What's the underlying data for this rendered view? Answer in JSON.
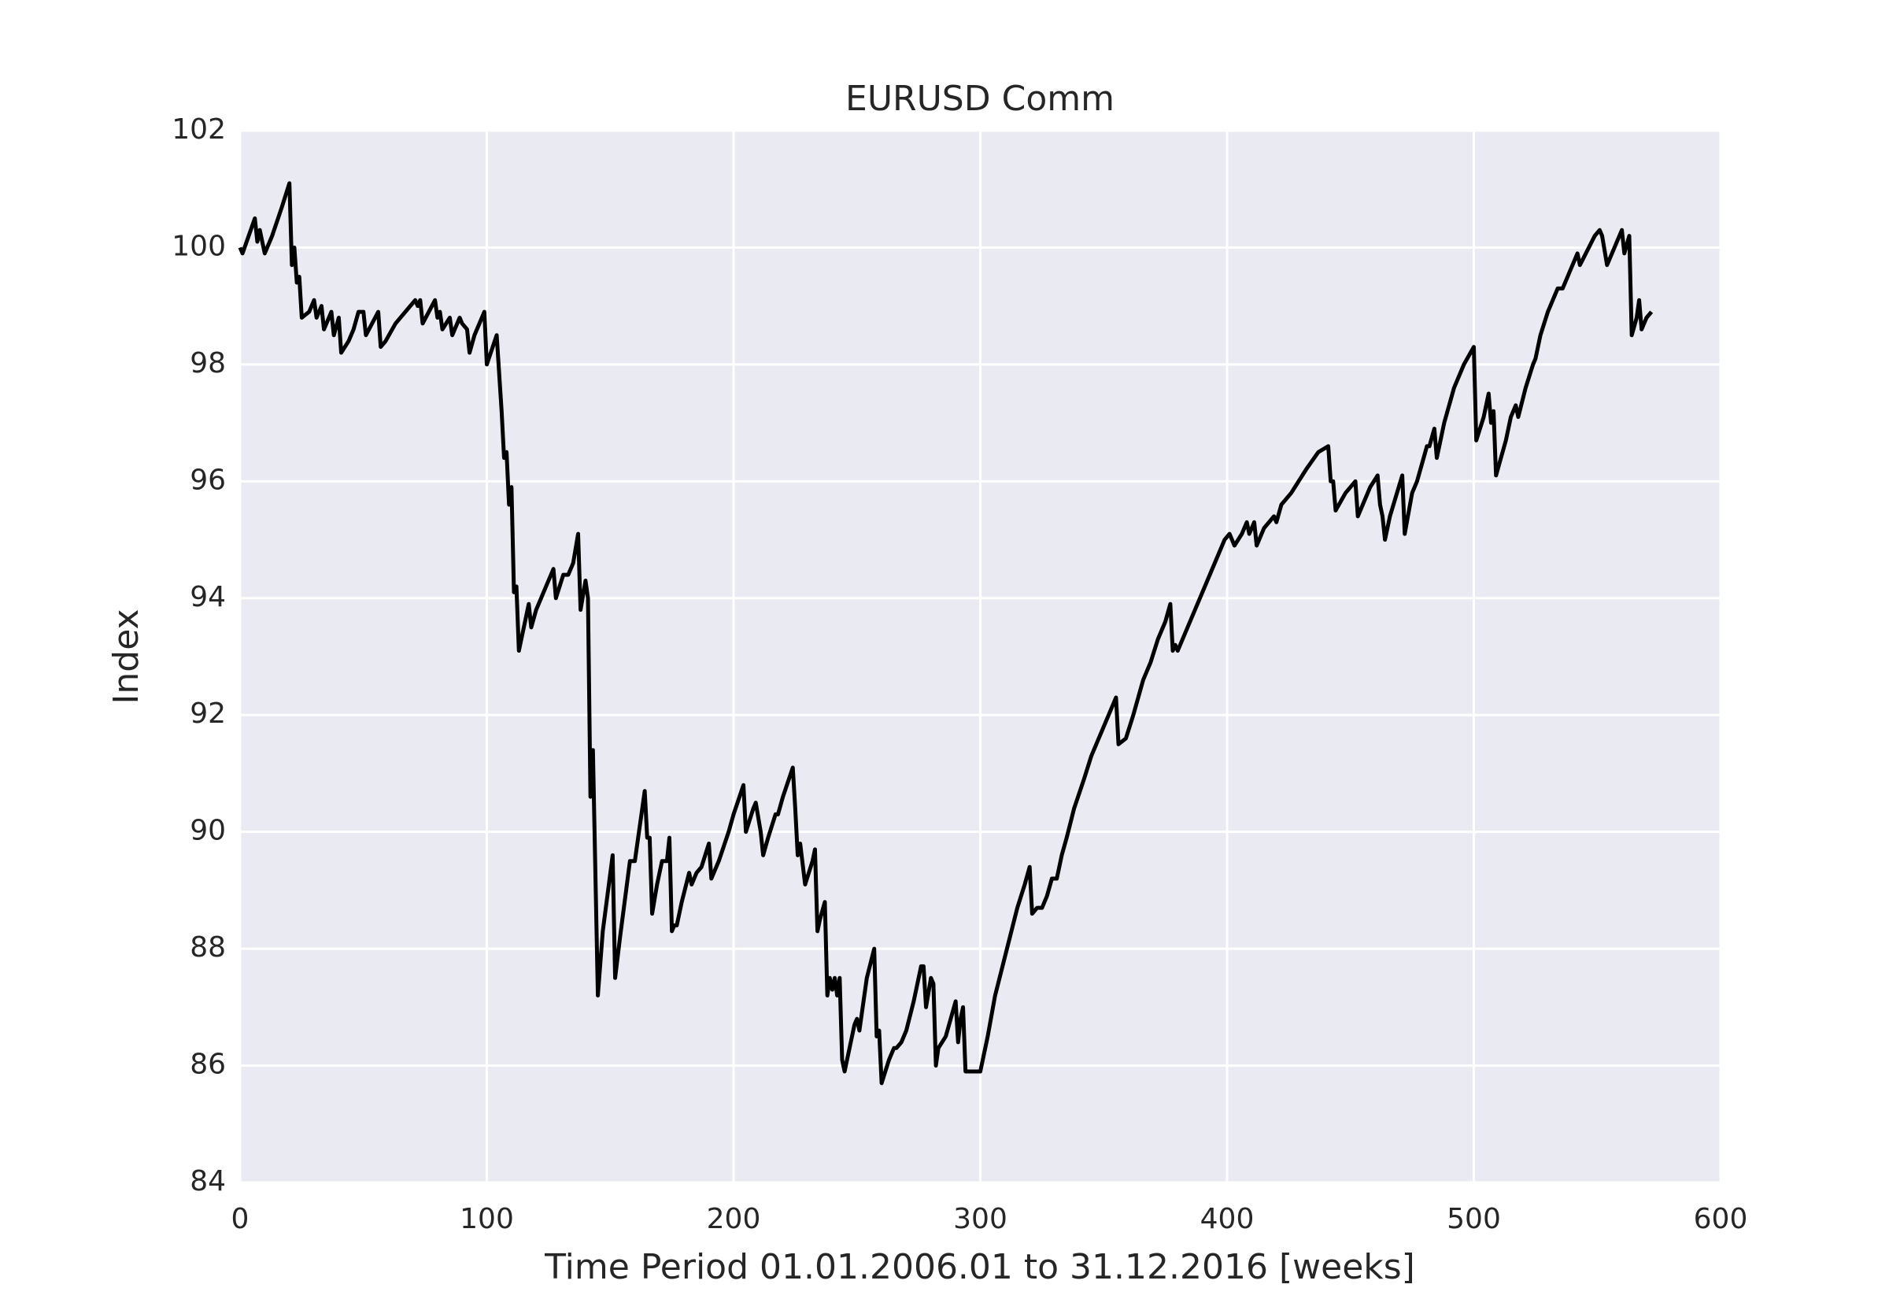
{
  "chart_data": {
    "type": "line",
    "title": "EURUSD Comm",
    "xlabel": "Time Period 01.01.2006.01 to 31.12.2016 [weeks]",
    "ylabel": "Index",
    "x": [
      0,
      1,
      6,
      7,
      8,
      10,
      13,
      17,
      20,
      21,
      22,
      23,
      24,
      25,
      28,
      30,
      31,
      33,
      34,
      37,
      38,
      40,
      41,
      44,
      46,
      48,
      50,
      51,
      56,
      57,
      59,
      63,
      69,
      71,
      72,
      73,
      74,
      79,
      80,
      81,
      82,
      85,
      86,
      89,
      90,
      92,
      93,
      95,
      99,
      100,
      104,
      106,
      107,
      108,
      109,
      110,
      111,
      112,
      113,
      115,
      117,
      118,
      120,
      124,
      127,
      128,
      131,
      133,
      135,
      137,
      138,
      140,
      141,
      142,
      143,
      145,
      147,
      151,
      152,
      154,
      158,
      160,
      164,
      165,
      166,
      167,
      169,
      171,
      173,
      174,
      175,
      176,
      177,
      179,
      182,
      183,
      185,
      187,
      190,
      191,
      194,
      198,
      200,
      204,
      205,
      208,
      209,
      211,
      212,
      214,
      217,
      218,
      220,
      224,
      225,
      226,
      227,
      229,
      232,
      233,
      234,
      235,
      237,
      238,
      239,
      240,
      241,
      242,
      243,
      244,
      245,
      249,
      250,
      251,
      254,
      257,
      258,
      259,
      260,
      263,
      265,
      266,
      268,
      270,
      273,
      276,
      277,
      278,
      280,
      281,
      282,
      283,
      286,
      288,
      290,
      291,
      292,
      293,
      294,
      300,
      303,
      306,
      309,
      312,
      315,
      318,
      320,
      321,
      323,
      325,
      327,
      329,
      331,
      333,
      335,
      338,
      342,
      345,
      349,
      353,
      355,
      356,
      359,
      362,
      366,
      369,
      372,
      375,
      377,
      378,
      379,
      380,
      383,
      386,
      390,
      395,
      399,
      401,
      403,
      406,
      408,
      409,
      411,
      412,
      415,
      419,
      420,
      422,
      426,
      429,
      432,
      437,
      441,
      442,
      443,
      444,
      448,
      452,
      453,
      458,
      461,
      462,
      463,
      464,
      466,
      471,
      472,
      475,
      477,
      481,
      482,
      484,
      485,
      488,
      492,
      496,
      500,
      501,
      504,
      506,
      507,
      508,
      509,
      513,
      515,
      517,
      518,
      521,
      524,
      525,
      527,
      530,
      534,
      536,
      540,
      542,
      543,
      549,
      551,
      552,
      554,
      560,
      561,
      563,
      564,
      566,
      567,
      568,
      570,
      572
    ],
    "values": [
      100.0,
      99.9,
      100.5,
      100.1,
      100.3,
      99.9,
      100.2,
      100.7,
      101.1,
      99.7,
      100.0,
      99.4,
      99.5,
      98.8,
      98.9,
      99.1,
      98.8,
      99.0,
      98.6,
      98.9,
      98.5,
      98.8,
      98.2,
      98.4,
      98.6,
      98.9,
      98.9,
      98.5,
      98.9,
      98.3,
      98.4,
      98.7,
      99.0,
      99.1,
      99.0,
      99.1,
      98.7,
      99.1,
      98.8,
      98.9,
      98.6,
      98.8,
      98.5,
      98.8,
      98.7,
      98.6,
      98.2,
      98.5,
      98.9,
      98.0,
      98.5,
      97.2,
      96.4,
      96.5,
      95.6,
      95.9,
      94.1,
      94.2,
      93.1,
      93.5,
      93.9,
      93.5,
      93.8,
      94.2,
      94.5,
      94.0,
      94.4,
      94.4,
      94.6,
      95.1,
      93.8,
      94.3,
      94.0,
      90.6,
      91.4,
      87.2,
      88.3,
      89.6,
      87.5,
      88.2,
      89.5,
      89.5,
      90.7,
      89.9,
      89.9,
      88.6,
      89.1,
      89.5,
      89.5,
      89.9,
      88.3,
      88.4,
      88.4,
      88.8,
      89.3,
      89.1,
      89.3,
      89.4,
      89.8,
      89.2,
      89.5,
      90.0,
      90.3,
      90.8,
      90.0,
      90.4,
      90.5,
      90.0,
      89.6,
      89.9,
      90.3,
      90.3,
      90.6,
      91.1,
      90.4,
      89.6,
      89.8,
      89.1,
      89.5,
      89.7,
      88.3,
      88.5,
      88.8,
      87.2,
      87.5,
      87.3,
      87.5,
      87.2,
      87.5,
      86.1,
      85.9,
      86.7,
      86.8,
      86.6,
      87.5,
      88.0,
      86.5,
      86.6,
      85.7,
      86.1,
      86.3,
      86.3,
      86.4,
      86.6,
      87.1,
      87.7,
      87.7,
      87.0,
      87.5,
      87.4,
      86.0,
      86.3,
      86.5,
      86.8,
      87.1,
      86.4,
      86.8,
      87.0,
      85.9,
      85.9,
      86.5,
      87.2,
      87.7,
      88.2,
      88.7,
      89.1,
      89.4,
      88.6,
      88.7,
      88.7,
      88.9,
      89.2,
      89.2,
      89.6,
      89.9,
      90.4,
      90.9,
      91.3,
      91.7,
      92.1,
      92.3,
      91.5,
      91.6,
      92.0,
      92.6,
      92.9,
      93.3,
      93.6,
      93.9,
      93.1,
      93.2,
      93.1,
      93.4,
      93.7,
      94.1,
      94.6,
      95.0,
      95.1,
      94.9,
      95.1,
      95.3,
      95.1,
      95.3,
      94.9,
      95.2,
      95.4,
      95.3,
      95.6,
      95.8,
      96.0,
      96.2,
      96.5,
      96.6,
      96.0,
      96.0,
      95.5,
      95.8,
      96.0,
      95.4,
      95.9,
      96.1,
      95.6,
      95.4,
      95.0,
      95.4,
      96.1,
      95.1,
      95.8,
      96.0,
      96.6,
      96.6,
      96.9,
      96.4,
      97.0,
      97.6,
      98.0,
      98.3,
      96.7,
      97.1,
      97.5,
      97.0,
      97.2,
      96.1,
      96.7,
      97.1,
      97.3,
      97.1,
      97.6,
      98.0,
      98.1,
      98.5,
      98.9,
      99.3,
      99.3,
      99.7,
      99.9,
      99.7,
      100.2,
      100.3,
      100.2,
      99.7,
      100.3,
      99.9,
      100.2,
      98.5,
      98.8,
      99.1,
      98.6,
      98.8,
      98.9
    ],
    "color": "#000000",
    "background": "#eaeaf2",
    "grid": true,
    "xlim": [
      0,
      600
    ],
    "ylim": [
      84,
      102
    ],
    "xticks": [
      0,
      100,
      200,
      300,
      400,
      500,
      600
    ],
    "yticks": [
      84,
      86,
      88,
      90,
      92,
      94,
      96,
      98,
      100,
      102
    ]
  }
}
